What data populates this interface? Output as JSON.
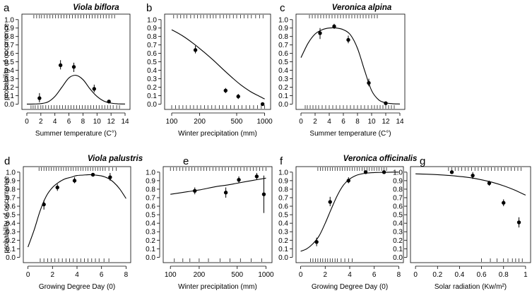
{
  "chart_data": [
    {
      "panel": "a",
      "type": "line",
      "species": "Viola biflora",
      "xlabel": "Summer temperature (C°)",
      "ylabel": "probability of occurrence",
      "xscale": "linear",
      "xlim": [
        -0.3,
        14.3
      ],
      "ylim": [
        -0.03,
        1.04
      ],
      "xticks": [
        0,
        2,
        4,
        6,
        8,
        10,
        12,
        14
      ],
      "yticks": [
        0.0,
        0.1,
        0.2,
        0.3,
        0.4,
        0.5,
        0.6,
        0.7,
        0.8,
        0.9,
        1.0
      ],
      "curve": {
        "x": [
          0,
          1,
          2,
          3,
          4,
          5,
          6,
          7,
          8,
          9,
          10,
          11,
          12,
          13,
          14
        ],
        "y": [
          0.0,
          0.001,
          0.005,
          0.025,
          0.09,
          0.2,
          0.31,
          0.34,
          0.29,
          0.18,
          0.09,
          0.035,
          0.012,
          0.003,
          0.001
        ]
      },
      "points": [
        {
          "x": 1.8,
          "y": 0.07,
          "err": [
            0.02,
            0.13
          ]
        },
        {
          "x": 4.8,
          "y": 0.46,
          "err": [
            0.41,
            0.52
          ]
        },
        {
          "x": 6.7,
          "y": 0.44,
          "err": [
            0.38,
            0.49
          ]
        },
        {
          "x": 9.6,
          "y": 0.18,
          "err": [
            0.14,
            0.23
          ]
        },
        {
          "x": 11.7,
          "y": 0.03,
          "err": [
            0.01,
            0.05
          ]
        }
      ],
      "rug_top": [
        1,
        1.4,
        1.8,
        2.1,
        2.5,
        2.9,
        3.3,
        3.7,
        4.1,
        4.5,
        4.9,
        5.3,
        5.7,
        6.1,
        6.5,
        6.9,
        7.3,
        7.7,
        8.1,
        8.5,
        8.9,
        9.3,
        9.7,
        10.1,
        10.5,
        10.9,
        11.3,
        11.7,
        12.1,
        12.5
      ],
      "rug_bottom": [
        0.6,
        0.9,
        1.2,
        1.6,
        2,
        2.3,
        2.7,
        3.1,
        3.5,
        3.9,
        4.3,
        4.7,
        5.1,
        5.5,
        5.9,
        6.3,
        6.7,
        7.1,
        7.5,
        7.9,
        8.3,
        8.7,
        9.1,
        9.5,
        9.9,
        10.3,
        10.7,
        11.1,
        11.5,
        11.9,
        12.3,
        12.8,
        13.2
      ]
    },
    {
      "panel": "b",
      "type": "line",
      "species": "",
      "xlabel": "Winter precipitation (mm)",
      "ylabel": "",
      "xscale": "log",
      "xlim": [
        90,
        1080
      ],
      "ylim": [
        -0.03,
        1.04
      ],
      "xticks": [
        100,
        200,
        500,
        1000
      ],
      "yticks": [
        0.0,
        0.1,
        0.2,
        0.3,
        0.4,
        0.5,
        0.6,
        0.7,
        0.8,
        0.9,
        1.0
      ],
      "curve": {
        "x": [
          100,
          130,
          170,
          220,
          280,
          350,
          450,
          550,
          700,
          850,
          1000
        ],
        "y": [
          0.88,
          0.81,
          0.72,
          0.62,
          0.52,
          0.42,
          0.31,
          0.23,
          0.15,
          0.1,
          0.06
        ]
      },
      "points": [
        {
          "x": 180,
          "y": 0.64,
          "err": [
            0.6,
            0.69
          ]
        },
        {
          "x": 380,
          "y": 0.16,
          "err": [
            0.13,
            0.19
          ]
        },
        {
          "x": 520,
          "y": 0.09,
          "err": [
            0.06,
            0.12
          ]
        },
        {
          "x": 950,
          "y": 0.0,
          "err": [
            0.0,
            0.01
          ]
        }
      ],
      "rug_top": [
        105,
        115,
        125,
        135,
        145,
        160,
        175,
        190,
        205,
        220,
        240,
        260,
        280,
        300,
        330,
        360,
        390,
        420,
        460,
        500,
        550,
        600,
        660,
        720,
        800,
        880,
        960
      ],
      "rug_bottom": [
        100,
        110,
        120,
        132,
        144,
        158,
        172,
        188,
        205,
        225,
        245,
        270,
        295,
        325,
        355,
        390,
        430,
        470,
        520,
        570,
        630,
        690,
        760,
        840,
        920,
        1000
      ]
    },
    {
      "panel": "c",
      "type": "line",
      "species": "Veronica alpina",
      "xlabel": "Summer temperature (C°)",
      "ylabel": "",
      "xscale": "linear",
      "xlim": [
        -0.3,
        14.3
      ],
      "ylim": [
        -0.03,
        1.04
      ],
      "xticks": [
        0,
        2,
        4,
        6,
        8,
        10,
        12,
        14
      ],
      "yticks": [
        0.0,
        0.1,
        0.2,
        0.3,
        0.4,
        0.5,
        0.6,
        0.7,
        0.8,
        0.9,
        1.0
      ],
      "curve": {
        "x": [
          0,
          1,
          2,
          3,
          4,
          5,
          6,
          7,
          8,
          9,
          10,
          11,
          12,
          13,
          14
        ],
        "y": [
          0.55,
          0.72,
          0.83,
          0.88,
          0.9,
          0.9,
          0.88,
          0.82,
          0.66,
          0.4,
          0.16,
          0.05,
          0.015,
          0.004,
          0.001
        ]
      },
      "points": [
        {
          "x": 2.7,
          "y": 0.84,
          "err": [
            0.77,
            0.9
          ]
        },
        {
          "x": 4.7,
          "y": 0.92,
          "err": [
            0.89,
            0.95
          ]
        },
        {
          "x": 6.7,
          "y": 0.76,
          "err": [
            0.72,
            0.81
          ]
        },
        {
          "x": 9.6,
          "y": 0.25,
          "err": [
            0.21,
            0.3
          ]
        },
        {
          "x": 12.0,
          "y": 0.01,
          "err": [
            0.0,
            0.02
          ]
        }
      ],
      "rug_top": [
        1.2,
        1.6,
        2,
        2.4,
        2.8,
        3.2,
        3.6,
        4,
        4.4,
        4.8,
        5.2,
        5.6,
        6,
        6.4,
        6.8,
        7.2,
        7.6,
        8,
        8.4,
        8.8,
        9.2,
        9.6,
        10,
        10.4,
        10.8
      ],
      "rug_bottom": [
        0.6,
        0.9,
        1.3,
        1.7,
        2.1,
        2.5,
        3,
        3.5,
        4,
        4.5,
        5,
        5.5,
        6,
        6.5,
        7,
        7.5,
        8,
        8.5,
        9,
        9.5,
        10,
        10.4,
        10.8,
        11.2,
        11.6,
        12,
        12.4,
        12.8,
        13.2
      ]
    },
    {
      "panel": "d",
      "type": "line",
      "species": "Viola palustris",
      "xlabel": "Growing Degree Day (0)",
      "ylabel": "probability of occurrence",
      "xscale": "linear",
      "xlim": [
        -0.15,
        8.15
      ],
      "ylim": [
        -0.03,
        1.04
      ],
      "xticks": [
        0,
        2,
        4,
        6,
        8
      ],
      "yticks": [
        0.0,
        0.1,
        0.2,
        0.3,
        0.4,
        0.5,
        0.6,
        0.7,
        0.8,
        0.9,
        1.0
      ],
      "curve": {
        "x": [
          0,
          0.5,
          1,
          1.5,
          2,
          2.5,
          3,
          3.5,
          4,
          4.5,
          5,
          5.5,
          6,
          6.5,
          7,
          7.5,
          8
        ],
        "y": [
          0.12,
          0.32,
          0.55,
          0.72,
          0.82,
          0.88,
          0.92,
          0.94,
          0.96,
          0.965,
          0.97,
          0.965,
          0.955,
          0.93,
          0.88,
          0.8,
          0.69
        ]
      },
      "points": [
        {
          "x": 1.3,
          "y": 0.62,
          "err": [
            0.56,
            0.67
          ]
        },
        {
          "x": 2.4,
          "y": 0.82,
          "err": [
            0.78,
            0.86
          ]
        },
        {
          "x": 3.8,
          "y": 0.9,
          "err": [
            0.87,
            0.94
          ]
        },
        {
          "x": 5.3,
          "y": 0.97,
          "err": [
            0.95,
            0.99
          ]
        },
        {
          "x": 6.7,
          "y": 0.94,
          "err": [
            0.9,
            0.99
          ]
        }
      ],
      "rug_top": [
        0.9,
        1.1,
        1.3,
        1.5,
        1.7,
        1.9,
        2.1,
        2.3,
        2.5,
        2.7,
        2.9,
        3.1,
        3.3,
        3.5,
        3.7,
        3.9,
        4.1,
        4.3,
        4.5,
        4.7,
        4.9,
        5.1,
        5.3,
        5.5,
        5.7,
        5.9,
        6.1,
        6.3,
        6.6,
        6.9,
        7.2
      ],
      "rug_bottom": [
        1,
        1.3,
        1.6,
        1.9,
        2.2,
        2.5,
        2.8,
        3.1,
        3.4,
        3.7,
        4,
        4.3,
        4.6,
        4.9,
        5.2,
        5.5,
        5.8,
        6.2,
        6.6
      ]
    },
    {
      "panel": "e",
      "type": "line",
      "species": "",
      "xlabel": "Winter precipitation (mm)",
      "ylabel": "",
      "xscale": "log",
      "xlim": [
        90,
        1080
      ],
      "ylim": [
        -0.03,
        1.04
      ],
      "xticks": [
        100,
        200,
        500,
        1000
      ],
      "yticks": [
        0.0,
        0.1,
        0.2,
        0.3,
        0.4,
        0.5,
        0.6,
        0.7,
        0.8,
        0.9,
        1.0
      ],
      "curve": {
        "x": [
          100,
          150,
          200,
          300,
          400,
          500,
          700,
          1000
        ],
        "y": [
          0.74,
          0.77,
          0.79,
          0.83,
          0.85,
          0.87,
          0.9,
          0.93
        ]
      },
      "points": [
        {
          "x": 180,
          "y": 0.78,
          "err": [
            0.74,
            0.82
          ]
        },
        {
          "x": 380,
          "y": 0.76,
          "err": [
            0.7,
            0.82
          ]
        },
        {
          "x": 520,
          "y": 0.91,
          "err": [
            0.87,
            0.95
          ]
        },
        {
          "x": 800,
          "y": 0.95,
          "err": [
            0.91,
            0.99
          ]
        },
        {
          "x": 950,
          "y": 0.74,
          "err": [
            0.52,
            0.96
          ]
        }
      ],
      "rug_top": [
        100,
        108,
        116,
        125,
        135,
        145,
        156,
        168,
        180,
        194,
        208,
        224,
        240,
        258,
        278,
        300,
        323,
        348,
        375,
        405,
        437,
        470,
        505,
        545,
        588,
        634,
        684,
        737,
        795,
        858,
        925,
        1000
      ],
      "rug_bottom": [
        110,
        135,
        160,
        200,
        250,
        330,
        420,
        540,
        700,
        900
      ]
    },
    {
      "panel": "f",
      "type": "line",
      "species": "Veronica officinalis",
      "xlabel": "Growing Degree Day (0)",
      "ylabel": "",
      "xscale": "linear",
      "xlim": [
        -0.15,
        8.15
      ],
      "ylim": [
        -0.03,
        1.04
      ],
      "xticks": [
        0,
        2,
        4,
        6,
        8
      ],
      "yticks": [
        0.0,
        0.1,
        0.2,
        0.3,
        0.4,
        0.5,
        0.6,
        0.7,
        0.8,
        0.9,
        1.0
      ],
      "curve": {
        "x": [
          0,
          0.5,
          1,
          1.5,
          2,
          2.5,
          3,
          3.5,
          4,
          4.5,
          5,
          5.5,
          6,
          6.5,
          7,
          7.5,
          8
        ],
        "y": [
          0.07,
          0.1,
          0.16,
          0.25,
          0.4,
          0.57,
          0.73,
          0.85,
          0.92,
          0.96,
          0.98,
          0.99,
          0.995,
          0.997,
          0.998,
          1.0,
          1.0
        ]
      },
      "points": [
        {
          "x": 1.3,
          "y": 0.18,
          "err": [
            0.13,
            0.23
          ]
        },
        {
          "x": 2.4,
          "y": 0.65,
          "err": [
            0.6,
            0.71
          ]
        },
        {
          "x": 3.9,
          "y": 0.9,
          "err": [
            0.87,
            0.94
          ]
        },
        {
          "x": 5.3,
          "y": 1.0,
          "err": [
            0.98,
            1.0
          ]
        },
        {
          "x": 6.8,
          "y": 1.0,
          "err": [
            0.99,
            1.0
          ]
        }
      ],
      "rug_top": [
        1.4,
        1.6,
        1.8,
        2,
        2.2,
        2.4,
        2.6,
        2.8,
        3,
        3.2,
        3.4,
        3.6,
        3.8,
        4,
        4.2,
        4.4,
        4.6,
        4.8,
        5,
        5.2,
        5.4,
        5.6,
        5.8,
        6,
        6.2,
        6.4,
        6.6,
        6.8,
        7
      ],
      "rug_bottom": [
        0.8,
        1,
        1.2,
        1.4,
        1.6,
        1.8,
        2,
        2.2,
        2.4,
        2.6,
        2.8,
        3,
        3.3,
        3.6,
        3.9,
        4.2
      ]
    },
    {
      "panel": "g",
      "type": "line",
      "species": "",
      "xlabel": "Solar radiation (Kw/m²)",
      "ylabel": "",
      "xscale": "linear",
      "xlim": [
        -0.02,
        1.02
      ],
      "ylim": [
        -0.03,
        1.04
      ],
      "xticks": [
        0.0,
        0.2,
        0.4,
        0.6,
        0.8,
        1.0
      ],
      "yticks": [
        0.0,
        0.1,
        0.2,
        0.3,
        0.4,
        0.5,
        0.6,
        0.7,
        0.8,
        0.9,
        1.0
      ],
      "curve": {
        "x": [
          0,
          0.2,
          0.4,
          0.5,
          0.6,
          0.7,
          0.8,
          0.9,
          1.0
        ],
        "y": [
          0.98,
          0.97,
          0.95,
          0.935,
          0.91,
          0.88,
          0.84,
          0.79,
          0.73
        ]
      },
      "points": [
        {
          "x": 0.33,
          "y": 1.0,
          "err": [
            0.99,
            1.0
          ]
        },
        {
          "x": 0.52,
          "y": 0.96,
          "err": [
            0.92,
            1.0
          ]
        },
        {
          "x": 0.67,
          "y": 0.87,
          "err": [
            0.84,
            0.9
          ]
        },
        {
          "x": 0.8,
          "y": 0.64,
          "err": [
            0.6,
            0.68
          ]
        },
        {
          "x": 0.94,
          "y": 0.41,
          "err": [
            0.35,
            0.47
          ]
        }
      ],
      "rug_top": [
        0.3,
        0.33,
        0.36,
        0.39,
        0.42,
        0.45,
        0.48,
        0.51,
        0.54,
        0.57,
        0.6,
        0.63,
        0.66,
        0.69,
        0.72,
        0.75,
        0.78,
        0.81,
        0.84,
        0.87,
        0.9,
        0.93,
        0.96
      ],
      "rug_bottom": [
        0.6,
        0.68,
        0.74,
        0.8,
        0.84,
        0.88,
        0.91,
        0.94,
        0.97
      ]
    }
  ]
}
